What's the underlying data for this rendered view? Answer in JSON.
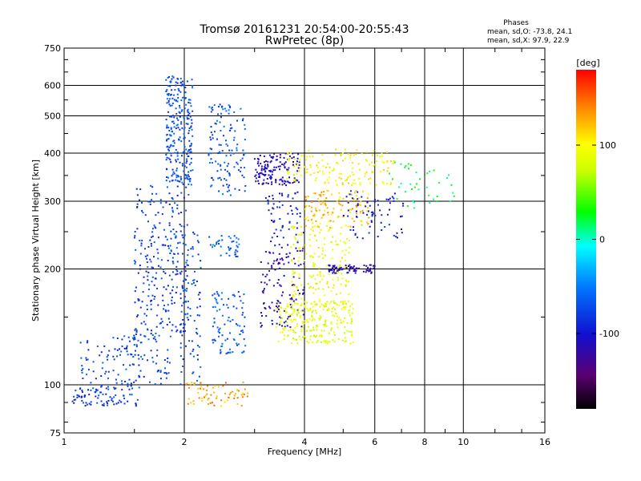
{
  "chart_data": {
    "type": "scatter",
    "title_line1": "Tromsø 20161231 20:54:00-20:55:43",
    "title_line2": "RwPretec (8p)",
    "xlabel": "Frequency [MHz]",
    "ylabel": "Stationary phase Virtual Height [km]",
    "x_scale": "log",
    "y_scale": "log",
    "xlim": [
      1,
      16
    ],
    "ylim": [
      75,
      750
    ],
    "x_ticks": [
      1,
      2,
      4,
      6,
      8,
      10,
      16
    ],
    "x_tick_labels": [
      "1",
      "2",
      "4",
      "6",
      "8",
      "10",
      "16"
    ],
    "y_ticks": [
      75,
      100,
      200,
      300,
      400,
      500,
      600,
      750
    ],
    "y_tick_labels": [
      "75",
      "100",
      "200",
      "300",
      "400",
      "500",
      "600",
      "750"
    ],
    "grid": true,
    "stats": {
      "heading": "Phases",
      "line_o": "mean, sd,O: -73.8, 24.1",
      "line_x": "mean, sd,X:  97.9, 22.9"
    },
    "colorbar": {
      "label": "[deg]",
      "range": [
        -180,
        180
      ],
      "ticks": [
        100,
        0,
        -100
      ],
      "tick_labels": [
        "100",
        "0",
        "-100"
      ]
    },
    "clusters": [
      {
        "fmin": 1.05,
        "fmax": 1.55,
        "hmin": 88,
        "hmax": 100,
        "phase": -80,
        "count": 90
      },
      {
        "fmin": 1.1,
        "fmax": 1.85,
        "hmin": 100,
        "hmax": 135,
        "phase": -75,
        "count": 140
      },
      {
        "fmin": 1.5,
        "fmax": 2.05,
        "hmin": 135,
        "hmax": 330,
        "phase": -78,
        "count": 260
      },
      {
        "fmin": 1.8,
        "fmax": 2.1,
        "hmin": 330,
        "hmax": 640,
        "phase": -72,
        "count": 260
      },
      {
        "fmin": 1.95,
        "fmax": 2.2,
        "hmin": 100,
        "hmax": 250,
        "phase": -74,
        "count": 90
      },
      {
        "fmin": 2.3,
        "fmax": 2.85,
        "hmin": 310,
        "hmax": 540,
        "phase": -68,
        "count": 130
      },
      {
        "fmin": 2.35,
        "fmax": 2.85,
        "hmin": 120,
        "hmax": 175,
        "phase": -66,
        "count": 90
      },
      {
        "fmin": 2.3,
        "fmax": 2.75,
        "hmin": 215,
        "hmax": 245,
        "phase": -60,
        "count": 40
      },
      {
        "fmin": 2.0,
        "fmax": 2.9,
        "hmin": 88,
        "hmax": 102,
        "phase": 130,
        "count": 70
      },
      {
        "fmin": 3.0,
        "fmax": 3.9,
        "hmin": 330,
        "hmax": 400,
        "phase": -110,
        "count": 140
      },
      {
        "fmin": 3.1,
        "fmax": 4.0,
        "hmin": 140,
        "hmax": 230,
        "phase": -115,
        "count": 120
      },
      {
        "fmin": 3.2,
        "fmax": 4.0,
        "hmin": 230,
        "hmax": 320,
        "phase": -95,
        "count": 60
      },
      {
        "fmin": 3.4,
        "fmax": 5.3,
        "hmin": 128,
        "hmax": 165,
        "phase": 85,
        "count": 230
      },
      {
        "fmin": 3.7,
        "fmax": 5.2,
        "hmin": 160,
        "hmax": 260,
        "phase": 95,
        "count": 180
      },
      {
        "fmin": 4.0,
        "fmax": 5.8,
        "hmin": 255,
        "hmax": 320,
        "phase": 120,
        "count": 120
      },
      {
        "fmin": 3.6,
        "fmax": 6.8,
        "hmin": 330,
        "hmax": 410,
        "phase": 100,
        "count": 150
      },
      {
        "fmin": 4.6,
        "fmax": 6.0,
        "hmin": 195,
        "hmax": 205,
        "phase": -115,
        "count": 70
      },
      {
        "fmin": 5.0,
        "fmax": 7.2,
        "hmin": 240,
        "hmax": 320,
        "phase": -100,
        "count": 70
      },
      {
        "fmin": 6.5,
        "fmax": 9.5,
        "hmin": 280,
        "hmax": 380,
        "phase": 20,
        "count": 40
      }
    ]
  }
}
